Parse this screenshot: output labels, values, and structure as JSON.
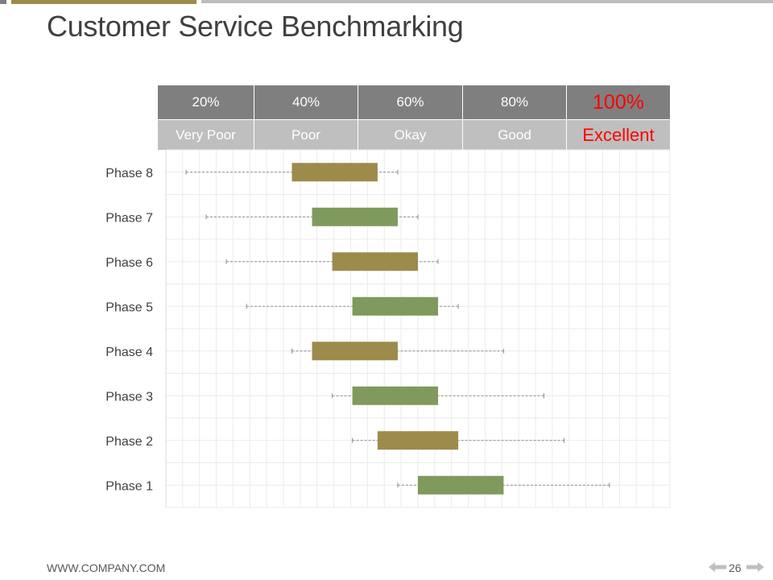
{
  "slide": {
    "title": "Customer Service Benchmarking",
    "footer_url": "WWW.COMPANY.COM",
    "page_number": "26"
  },
  "scale": {
    "percentages": [
      "20%",
      "40%",
      "60%",
      "80%",
      "100%"
    ],
    "ratings": [
      "Very Poor",
      "Poor",
      "Okay",
      "Good",
      "Excellent"
    ],
    "highlight_color": "#ff0000"
  },
  "colors": {
    "gold": "#9d8b4c",
    "green": "#7f9a5c",
    "header_dark": "#7f7f7f",
    "header_light": "#bfbfbf"
  },
  "chart_data": {
    "type": "box",
    "title": "Customer Service Benchmarking",
    "xlim": [
      0,
      100
    ],
    "categories": [
      "Phase 8",
      "Phase 7",
      "Phase 6",
      "Phase 5",
      "Phase 4",
      "Phase 3",
      "Phase 2",
      "Phase 1"
    ],
    "series": [
      {
        "name": "Phase 8",
        "min": 4,
        "q1": 25,
        "q3": 42,
        "max": 46,
        "color": "gold"
      },
      {
        "name": "Phase 7",
        "min": 8,
        "q1": 29,
        "q3": 46,
        "max": 50,
        "color": "green"
      },
      {
        "name": "Phase 6",
        "min": 12,
        "q1": 33,
        "q3": 50,
        "max": 54,
        "color": "gold"
      },
      {
        "name": "Phase 5",
        "min": 16,
        "q1": 37,
        "q3": 54,
        "max": 58,
        "color": "green"
      },
      {
        "name": "Phase 4",
        "min": 25,
        "q1": 29,
        "q3": 46,
        "max": 67,
        "color": "gold"
      },
      {
        "name": "Phase 3",
        "min": 33,
        "q1": 37,
        "q3": 54,
        "max": 75,
        "color": "green"
      },
      {
        "name": "Phase 2",
        "min": 37,
        "q1": 42,
        "q3": 58,
        "max": 79,
        "color": "gold"
      },
      {
        "name": "Phase 1",
        "min": 46,
        "q1": 50,
        "q3": 67,
        "max": 88,
        "color": "green"
      }
    ]
  }
}
